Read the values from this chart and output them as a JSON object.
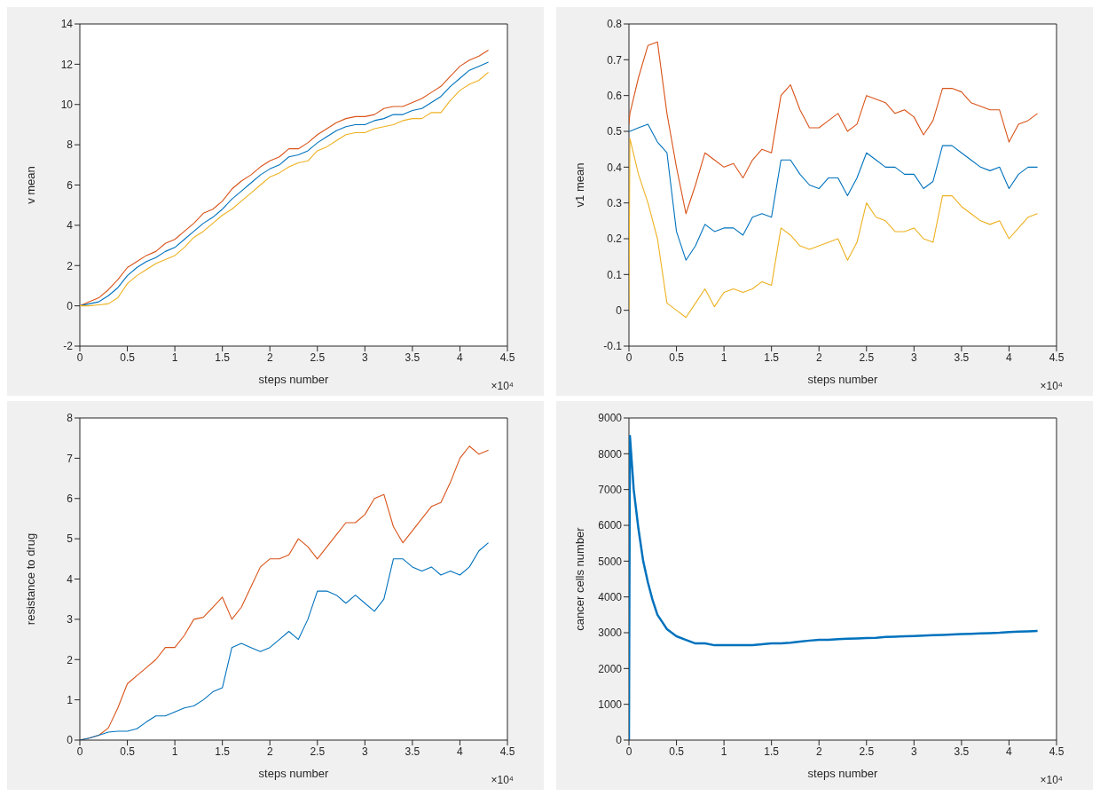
{
  "chart_data": [
    {
      "type": "line",
      "xlabel": "steps number",
      "ylabel": "v mean",
      "annotations": [
        "×10⁴"
      ],
      "xlim": [
        0,
        4.5
      ],
      "xticks": [
        0,
        0.5,
        1,
        1.5,
        2,
        2.5,
        3,
        3.5,
        4,
        4.5
      ],
      "ylim": [
        -2,
        14
      ],
      "yticks": [
        -2,
        0,
        2,
        4,
        6,
        8,
        10,
        12,
        14
      ],
      "x": [
        0,
        0.1,
        0.2,
        0.3,
        0.4,
        0.5,
        0.6,
        0.7,
        0.8,
        0.9,
        1.0,
        1.1,
        1.2,
        1.3,
        1.4,
        1.5,
        1.6,
        1.7,
        1.8,
        1.9,
        2.0,
        2.1,
        2.2,
        2.3,
        2.4,
        2.5,
        2.6,
        2.7,
        2.8,
        2.9,
        3.0,
        3.1,
        3.2,
        3.3,
        3.4,
        3.5,
        3.6,
        3.7,
        3.8,
        3.9,
        4.0,
        4.1,
        4.2,
        4.3
      ],
      "series": [
        {
          "color": "#d95319",
          "values": [
            0,
            0.2,
            0.4,
            0.8,
            1.3,
            1.9,
            2.2,
            2.5,
            2.7,
            3.1,
            3.3,
            3.7,
            4.1,
            4.6,
            4.8,
            5.2,
            5.8,
            6.2,
            6.5,
            6.9,
            7.2,
            7.4,
            7.8,
            7.8,
            8.1,
            8.5,
            8.8,
            9.1,
            9.3,
            9.4,
            9.4,
            9.5,
            9.8,
            9.9,
            9.9,
            10.1,
            10.3,
            10.6,
            10.9,
            11.4,
            11.9,
            12.2,
            12.4,
            12.7
          ]
        },
        {
          "color": "#0072bd",
          "values": [
            0,
            0.1,
            0.2,
            0.5,
            0.9,
            1.5,
            1.9,
            2.2,
            2.4,
            2.7,
            2.9,
            3.3,
            3.7,
            4.1,
            4.4,
            4.8,
            5.3,
            5.7,
            6.1,
            6.5,
            6.8,
            7.0,
            7.4,
            7.5,
            7.7,
            8.1,
            8.4,
            8.7,
            8.9,
            9.0,
            9.0,
            9.2,
            9.3,
            9.5,
            9.5,
            9.7,
            9.8,
            10.1,
            10.4,
            10.9,
            11.3,
            11.7,
            11.9,
            12.1
          ]
        },
        {
          "color": "#edb120",
          "values": [
            0,
            0,
            0.05,
            0.1,
            0.4,
            1.1,
            1.5,
            1.8,
            2.1,
            2.3,
            2.5,
            2.9,
            3.4,
            3.7,
            4.1,
            4.5,
            4.8,
            5.2,
            5.6,
            6.0,
            6.4,
            6.6,
            6.9,
            7.1,
            7.2,
            7.7,
            7.9,
            8.2,
            8.5,
            8.6,
            8.6,
            8.8,
            8.9,
            9.0,
            9.2,
            9.3,
            9.3,
            9.6,
            9.6,
            10.2,
            10.7,
            11.0,
            11.2,
            11.6
          ]
        }
      ]
    },
    {
      "type": "line",
      "xlabel": "steps number",
      "ylabel": "v1 mean",
      "annotations": [
        "×10⁴"
      ],
      "xlim": [
        0,
        4.5
      ],
      "xticks": [
        0,
        0.5,
        1,
        1.5,
        2,
        2.5,
        3,
        3.5,
        4,
        4.5
      ],
      "ylim": [
        -0.1,
        0.8
      ],
      "yticks": [
        -0.1,
        0,
        0.1,
        0.2,
        0.3,
        0.4,
        0.5,
        0.6,
        0.7,
        0.8
      ],
      "x": [
        0,
        0.01,
        0.1,
        0.2,
        0.3,
        0.4,
        0.5,
        0.6,
        0.7,
        0.8,
        0.9,
        1.0,
        1.1,
        1.2,
        1.3,
        1.4,
        1.5,
        1.6,
        1.7,
        1.8,
        1.9,
        2.0,
        2.1,
        2.2,
        2.3,
        2.4,
        2.5,
        2.6,
        2.7,
        2.8,
        2.9,
        3.0,
        3.1,
        3.2,
        3.3,
        3.4,
        3.5,
        3.6,
        3.7,
        3.8,
        3.9,
        4.0,
        4.1,
        4.2,
        4.3
      ],
      "series": [
        {
          "color": "#d95319",
          "values": [
            0.52,
            0.55,
            0.65,
            0.74,
            0.75,
            0.55,
            0.4,
            0.27,
            0.35,
            0.44,
            0.42,
            0.4,
            0.41,
            0.37,
            0.42,
            0.45,
            0.44,
            0.6,
            0.63,
            0.56,
            0.51,
            0.51,
            0.53,
            0.55,
            0.5,
            0.52,
            0.6,
            0.59,
            0.58,
            0.55,
            0.56,
            0.54,
            0.49,
            0.53,
            0.62,
            0.62,
            0.61,
            0.58,
            0.57,
            0.56,
            0.56,
            0.47,
            0.52,
            0.53,
            0.55
          ]
        },
        {
          "color": "#0072bd",
          "values": [
            0.5,
            0.5,
            0.51,
            0.52,
            0.47,
            0.44,
            0.22,
            0.14,
            0.18,
            0.24,
            0.22,
            0.23,
            0.23,
            0.21,
            0.26,
            0.27,
            0.26,
            0.42,
            0.42,
            0.38,
            0.35,
            0.34,
            0.37,
            0.37,
            0.32,
            0.37,
            0.44,
            0.42,
            0.4,
            0.4,
            0.38,
            0.38,
            0.34,
            0.36,
            0.46,
            0.46,
            0.44,
            0.42,
            0.4,
            0.39,
            0.4,
            0.34,
            0.38,
            0.4,
            0.4
          ]
        },
        {
          "color": "#edb120",
          "values": [
            0,
            0.48,
            0.38,
            0.3,
            0.2,
            0.02,
            0,
            -0.02,
            0.02,
            0.06,
            0.01,
            0.05,
            0.06,
            0.05,
            0.06,
            0.08,
            0.07,
            0.23,
            0.21,
            0.18,
            0.17,
            0.18,
            0.19,
            0.2,
            0.14,
            0.19,
            0.3,
            0.26,
            0.25,
            0.22,
            0.22,
            0.23,
            0.2,
            0.19,
            0.32,
            0.32,
            0.29,
            0.27,
            0.25,
            0.24,
            0.25,
            0.2,
            0.23,
            0.26,
            0.27
          ]
        }
      ]
    },
    {
      "type": "line",
      "xlabel": "steps number",
      "ylabel": "resistance to drug",
      "annotations": [
        "×10⁴"
      ],
      "xlim": [
        0,
        4.5
      ],
      "xticks": [
        0,
        0.5,
        1,
        1.5,
        2,
        2.5,
        3,
        3.5,
        4,
        4.5
      ],
      "ylim": [
        0,
        8
      ],
      "yticks": [
        0,
        1,
        2,
        3,
        4,
        5,
        6,
        7,
        8
      ],
      "x": [
        0,
        0.1,
        0.2,
        0.3,
        0.4,
        0.5,
        0.6,
        0.7,
        0.8,
        0.9,
        1.0,
        1.1,
        1.2,
        1.3,
        1.4,
        1.5,
        1.6,
        1.7,
        1.8,
        1.9,
        2.0,
        2.1,
        2.2,
        2.3,
        2.4,
        2.5,
        2.6,
        2.7,
        2.8,
        2.9,
        3.0,
        3.1,
        3.2,
        3.3,
        3.4,
        3.5,
        3.6,
        3.7,
        3.8,
        3.9,
        4.0,
        4.1,
        4.2,
        4.3
      ],
      "series": [
        {
          "color": "#d95319",
          "values": [
            0,
            0.05,
            0.12,
            0.3,
            0.8,
            1.4,
            1.6,
            1.8,
            2.0,
            2.3,
            2.3,
            2.6,
            3.0,
            3.05,
            3.3,
            3.55,
            3.0,
            3.3,
            3.8,
            4.3,
            4.5,
            4.5,
            4.6,
            5.0,
            4.8,
            4.5,
            4.8,
            5.1,
            5.4,
            5.4,
            5.6,
            6.0,
            6.1,
            5.3,
            4.9,
            5.2,
            5.5,
            5.8,
            5.9,
            6.4,
            7.0,
            7.3,
            7.1,
            7.2
          ]
        },
        {
          "color": "#0072bd",
          "values": [
            0,
            0.05,
            0.12,
            0.2,
            0.22,
            0.22,
            0.28,
            0.45,
            0.6,
            0.6,
            0.7,
            0.8,
            0.85,
            1.0,
            1.2,
            1.3,
            2.3,
            2.4,
            2.3,
            2.2,
            2.3,
            2.5,
            2.7,
            2.5,
            3.0,
            3.7,
            3.7,
            3.6,
            3.4,
            3.6,
            3.4,
            3.2,
            3.5,
            4.5,
            4.5,
            4.3,
            4.2,
            4.3,
            4.1,
            4.2,
            4.1,
            4.3,
            4.7,
            4.9
          ]
        }
      ]
    },
    {
      "type": "line",
      "xlabel": "steps number",
      "ylabel": "cancer cells number",
      "annotations": [
        "×10⁴"
      ],
      "xlim": [
        0,
        4.5
      ],
      "xticks": [
        0,
        0.5,
        1,
        1.5,
        2,
        2.5,
        3,
        3.5,
        4,
        4.5
      ],
      "ylim": [
        0,
        9000
      ],
      "yticks": [
        0,
        1000,
        2000,
        3000,
        4000,
        5000,
        6000,
        7000,
        8000,
        9000
      ],
      "x": [
        0,
        0.01,
        0.05,
        0.1,
        0.15,
        0.2,
        0.25,
        0.3,
        0.35,
        0.4,
        0.5,
        0.6,
        0.7,
        0.8,
        0.9,
        1.0,
        1.1,
        1.2,
        1.3,
        1.4,
        1.5,
        1.6,
        1.7,
        1.8,
        1.9,
        2.0,
        2.1,
        2.2,
        2.3,
        2.4,
        2.5,
        2.6,
        2.7,
        2.8,
        2.9,
        3.0,
        3.1,
        3.2,
        3.3,
        3.4,
        3.5,
        3.6,
        3.7,
        3.8,
        3.9,
        4.0,
        4.1,
        4.2,
        4.3
      ],
      "series": [
        {
          "color": "#0072bd",
          "values": [
            0,
            8500,
            7000,
            5900,
            5000,
            4400,
            3900,
            3500,
            3300,
            3100,
            2900,
            2800,
            2700,
            2700,
            2650,
            2650,
            2650,
            2650,
            2650,
            2680,
            2700,
            2700,
            2720,
            2750,
            2780,
            2800,
            2800,
            2820,
            2830,
            2840,
            2850,
            2860,
            2880,
            2890,
            2900,
            2910,
            2920,
            2930,
            2940,
            2950,
            2960,
            2970,
            2980,
            2990,
            3000,
            3020,
            3030,
            3040,
            3050
          ]
        }
      ]
    }
  ]
}
